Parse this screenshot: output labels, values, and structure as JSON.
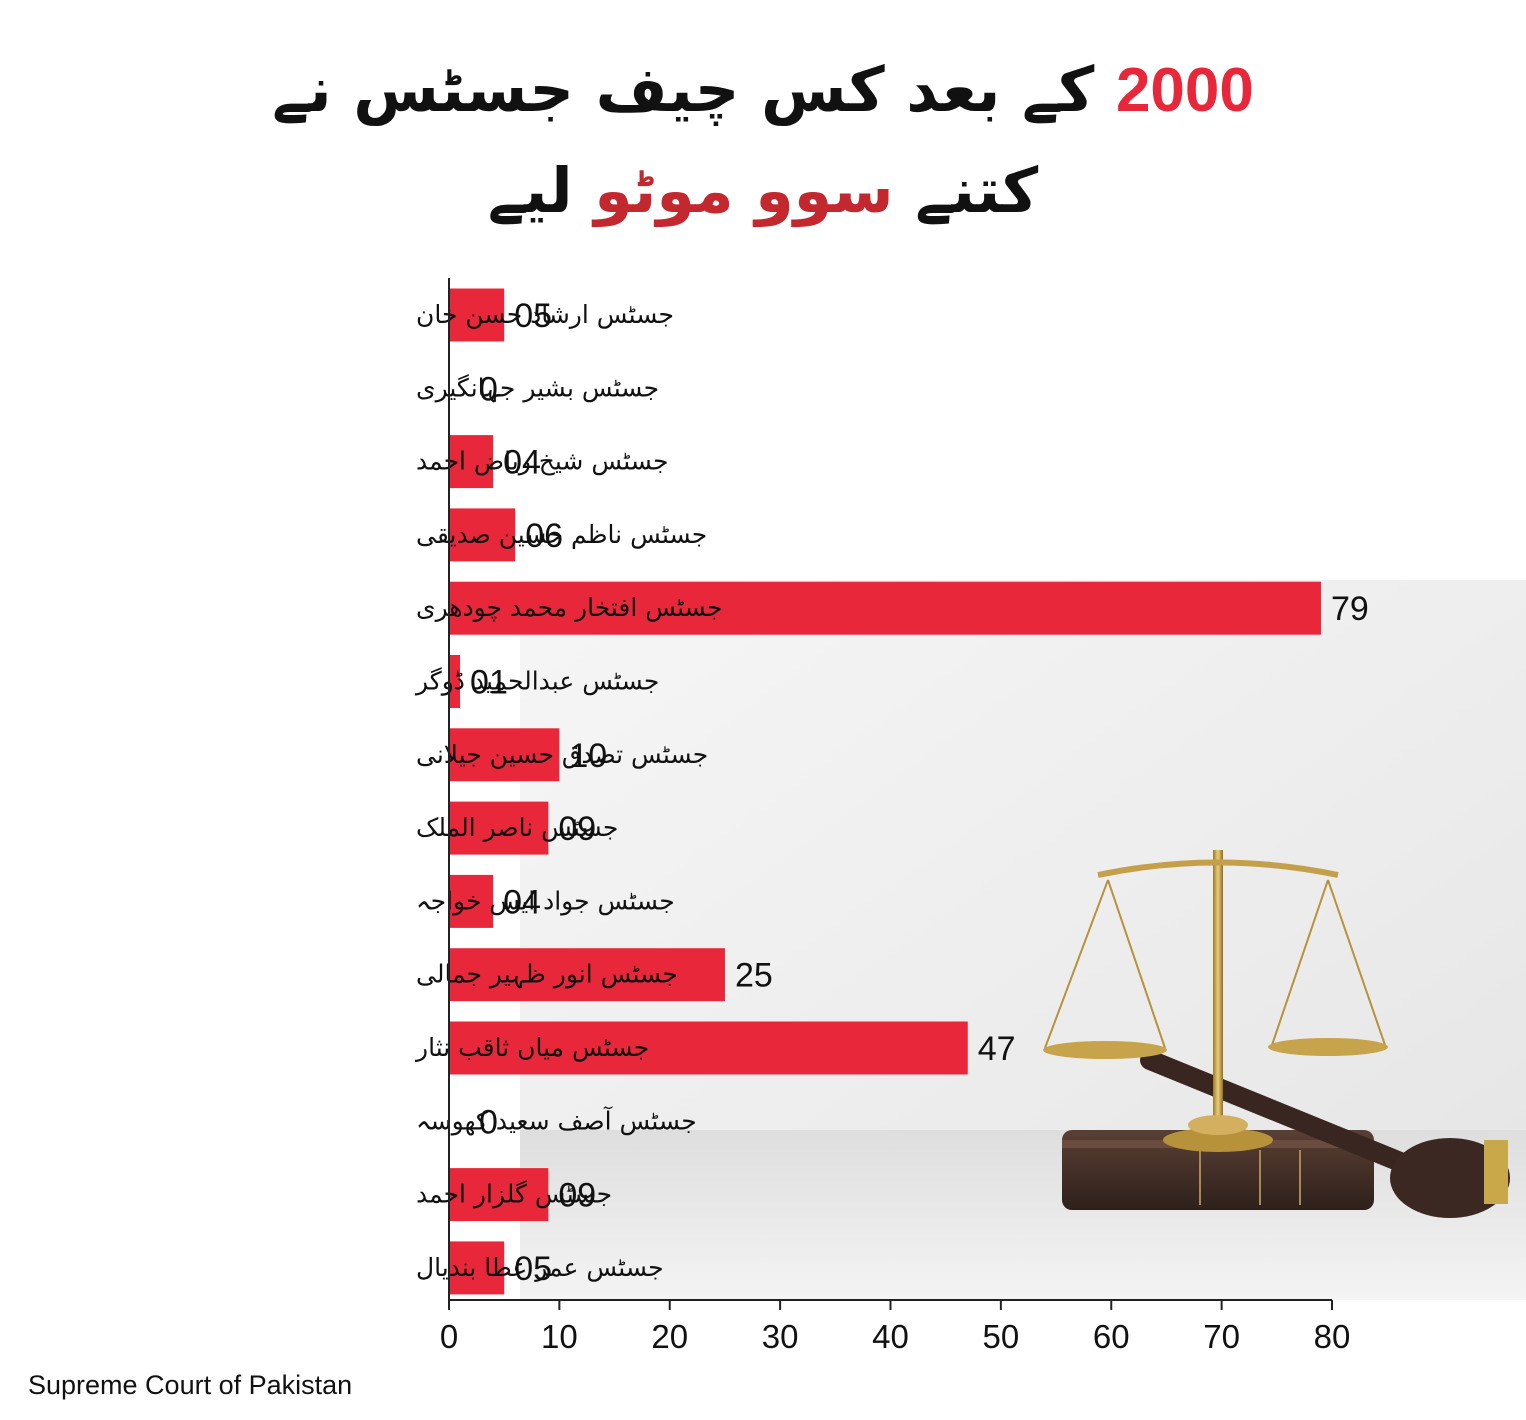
{
  "title": {
    "line1_year": "2000",
    "line1_text": "کے بعد کس چیف جسٹس نے",
    "line2_prefix": "کتنے",
    "line2_highlight": "سوو موٹو",
    "line2_suffix": "لیے"
  },
  "source": "Supreme Court of Pakistan",
  "colors": {
    "bar": "#e8283a",
    "title_accent": "#e8283a",
    "title_accent_dark": "#c3282f",
    "axis": "#222222"
  },
  "chart_data": {
    "type": "bar",
    "orientation": "horizontal",
    "categories": [
      "جسٹس ارشاد حسن خان",
      "جسٹس بشیر جہانگیری",
      "جسٹس شیخ ریاض احمد",
      "جسٹس ناظم حسین صدیقی",
      "جسٹس افتخار محمد چودھری",
      "جسٹس عبدالحمید ڈوگر",
      "جسٹس تصدق حسین جیلانی",
      "جسٹس ناصر الملک",
      "جسٹس جواد ایس خواجہ",
      "جسٹس انور ظہیر جمالی",
      "جسٹس میاں ثاقب نثار",
      "جسٹس آصف سعید کھوسہ",
      "جسٹس گلزار احمد",
      "جسٹس عمر عطا بندیال"
    ],
    "values": [
      5,
      0,
      4,
      6,
      79,
      1,
      10,
      9,
      4,
      25,
      47,
      0,
      9,
      5
    ],
    "value_labels": [
      "05",
      "0",
      "04",
      "06",
      "79",
      "01",
      "10",
      "09",
      "04",
      "25",
      "47",
      "0",
      "09",
      "05"
    ],
    "xlim": [
      0,
      80
    ],
    "xticks": [
      "0",
      "10",
      "20",
      "30",
      "40",
      "50",
      "60",
      "70",
      "80"
    ],
    "grid": false
  }
}
